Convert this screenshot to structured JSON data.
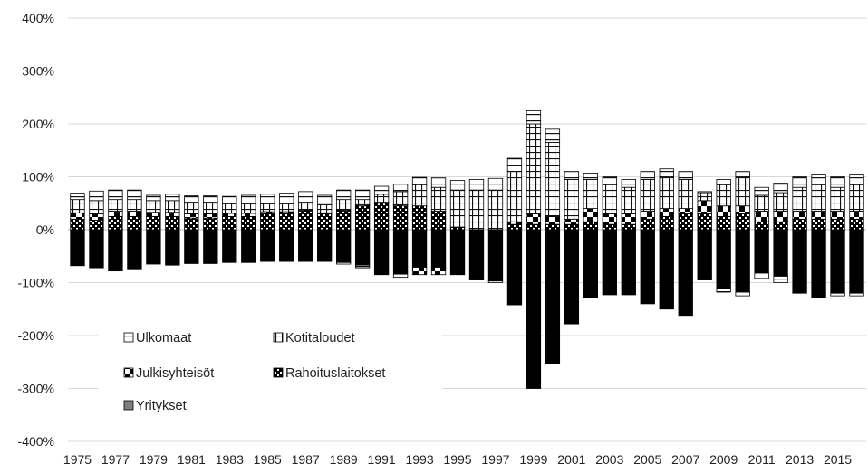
{
  "chart_data": {
    "type": "bar",
    "stacked": true,
    "grid": true,
    "ylim": [
      -4,
      4
    ],
    "y_ticks": [
      "400%",
      "300%",
      "200%",
      "100%",
      "0%",
      "-100%",
      "-200%",
      "-300%",
      "-400%"
    ],
    "x_labels": [
      "1975",
      "1977",
      "1979",
      "1981",
      "1983",
      "1985",
      "1987",
      "1989",
      "1991",
      "1993",
      "1995",
      "1997",
      "1999",
      "2001",
      "2003",
      "2005",
      "2007",
      "2009",
      "2011",
      "2013",
      "2015"
    ],
    "categories": [
      1975,
      1976,
      1977,
      1978,
      1979,
      1980,
      1981,
      1982,
      1983,
      1984,
      1985,
      1986,
      1987,
      1988,
      1989,
      1990,
      1991,
      1992,
      1993,
      1994,
      1995,
      1996,
      1997,
      1998,
      1999,
      2000,
      2001,
      2002,
      2003,
      2004,
      2005,
      2006,
      2007,
      2008,
      2009,
      2010,
      2011,
      2012,
      2013,
      2014,
      2015,
      2016
    ],
    "legend_position": "lower-left",
    "series": [
      {
        "name": "Ulkomaat",
        "key": "ulkomaat",
        "color": "#ffffff",
        "values": [
          0.12,
          0.18,
          0.18,
          0.18,
          0.1,
          0.12,
          0.12,
          0.12,
          0.14,
          0.16,
          0.18,
          0.2,
          0.2,
          0.18,
          0.18,
          0.18,
          0.15,
          0.14,
          0.14,
          0.18,
          0.18,
          0.2,
          0.22,
          0.25,
          0.25,
          0.25,
          0.15,
          0.12,
          0.15,
          0.15,
          0.15,
          0.15,
          0.15,
          0.02,
          0.1,
          0.1,
          0.15,
          0.18,
          0.2,
          0.2,
          0.2,
          0.2
        ]
      },
      {
        "name": "Kotitaloudet",
        "key": "kotitaloudet",
        "color": "#ffffff",
        "values": [
          0.25,
          0.25,
          0.22,
          0.22,
          0.22,
          0.22,
          0.22,
          0.22,
          0.18,
          0.18,
          0.15,
          0.15,
          0.15,
          0.15,
          0.2,
          0.1,
          0.15,
          0.25,
          0.4,
          0.45,
          0.7,
          0.75,
          0.75,
          0.95,
          1.7,
          1.4,
          0.75,
          0.55,
          0.55,
          0.5,
          0.6,
          0.6,
          0.55,
          0.15,
          0.4,
          0.55,
          0.3,
          0.35,
          0.45,
          0.5,
          0.45,
          0.5
        ]
      },
      {
        "name": "Julkisyhteisöt",
        "key": "julkisyhteisot",
        "color": "#000000",
        "values": [
          0.12,
          0.12,
          0.1,
          0.1,
          0.08,
          0.08,
          0.08,
          0.08,
          0.06,
          0.06,
          0.04,
          0.04,
          0.02,
          0.02,
          0.02,
          0.02,
          0.02,
          0.02,
          0.0,
          0.0,
          0.0,
          0.0,
          0.0,
          0.05,
          0.2,
          0.15,
          0.1,
          0.25,
          0.2,
          0.2,
          0.15,
          0.15,
          0.1,
          0.25,
          0.2,
          0.15,
          0.2,
          0.2,
          0.15,
          0.15,
          0.15,
          0.15
        ]
      },
      {
        "name": "Rahoituslaitokset",
        "key": "rahoituslaitokset",
        "color": "#000000",
        "values": [
          0.2,
          0.18,
          0.25,
          0.25,
          0.25,
          0.25,
          0.22,
          0.22,
          0.25,
          0.25,
          0.3,
          0.3,
          0.35,
          0.3,
          0.35,
          0.45,
          0.5,
          0.45,
          0.45,
          0.35,
          0.05,
          0.0,
          0.0,
          0.1,
          0.1,
          0.1,
          0.1,
          0.15,
          0.1,
          0.1,
          0.2,
          0.25,
          0.3,
          0.3,
          0.25,
          0.3,
          0.15,
          0.15,
          0.2,
          0.2,
          0.2,
          0.2
        ]
      },
      {
        "name": "Yritykset",
        "key": "yritykset",
        "color": "#000000",
        "values": [
          -0.68,
          -0.72,
          -0.78,
          -0.74,
          -0.65,
          -0.67,
          -0.64,
          -0.64,
          -0.62,
          -0.62,
          -0.6,
          -0.6,
          -0.6,
          -0.6,
          -0.65,
          -0.72,
          -0.85,
          -0.9,
          -0.85,
          -0.85,
          -0.85,
          -0.95,
          -1.0,
          -1.42,
          -3.0,
          -2.53,
          -1.78,
          -1.28,
          -1.23,
          -1.23,
          -1.4,
          -1.5,
          -1.62,
          -0.95,
          -1.18,
          -1.25,
          -0.92,
          -1.0,
          -1.2,
          -1.28,
          -1.25,
          -1.25
        ]
      }
    ],
    "negative_overlays": [
      {
        "category": 1989,
        "series": "ulkomaat",
        "value": -0.03
      },
      {
        "category": 1990,
        "series": "ulkomaat",
        "value": -0.05
      },
      {
        "category": 1992,
        "series": "ulkomaat",
        "value": -0.06
      },
      {
        "category": 1993,
        "series": "julkisyhteisot",
        "value": -0.14
      },
      {
        "category": 1994,
        "series": "julkisyhteisot",
        "value": -0.14
      },
      {
        "category": 1997,
        "series": "ulkomaat",
        "value": -0.03
      },
      {
        "category": 2009,
        "series": "ulkomaat",
        "value": -0.06
      },
      {
        "category": 2010,
        "series": "ulkomaat",
        "value": -0.07
      },
      {
        "category": 2011,
        "series": "ulkomaat",
        "value": -0.1
      },
      {
        "category": 2012,
        "series": "ulkomaat",
        "value": -0.12
      },
      {
        "category": 2015,
        "series": "ulkomaat",
        "value": -0.05
      },
      {
        "category": 2016,
        "series": "ulkomaat",
        "value": -0.05
      }
    ]
  }
}
